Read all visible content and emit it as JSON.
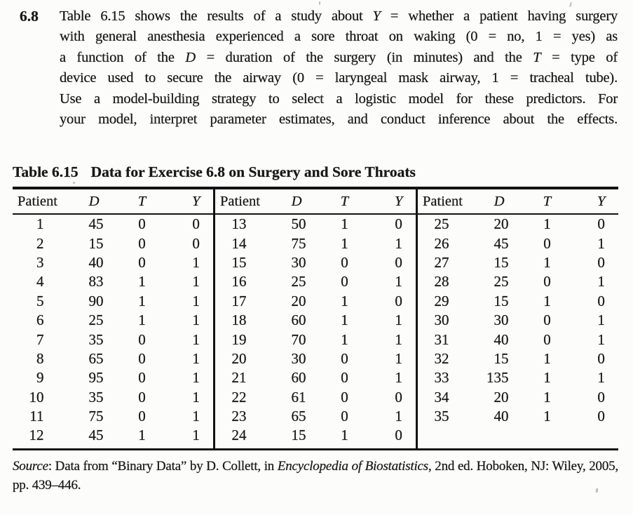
{
  "exercise": {
    "number": "6.8",
    "problem_lines": [
      [
        {
          "t": "Table 6.15 shows the results of a study about "
        },
        {
          "t": "Y",
          "i": true
        },
        {
          "t": " = whether a patient having surgery"
        }
      ],
      [
        {
          "t": "with general anesthesia experienced a sore throat on waking (0 = no, 1 = yes) as"
        }
      ],
      [
        {
          "t": "a function of the "
        },
        {
          "t": "D",
          "i": true
        },
        {
          "t": " = duration of the surgery (in minutes) and the "
        },
        {
          "t": "T",
          "i": true
        },
        {
          "t": " = type of"
        }
      ],
      [
        {
          "t": "device used to secure the airway (0 = laryngeal mask airway, 1 = tracheal tube)."
        }
      ],
      [
        {
          "t": "Use a model-building strategy to select a logistic model for these predictors. For"
        }
      ],
      [
        {
          "t": "your model, interpret parameter estimates, and conduct inference about the effects."
        }
      ]
    ]
  },
  "table": {
    "caption_label": "Table 6.15",
    "caption_title": "Data for Exercise 6.8 on Surgery and Sore Throats",
    "column_headers": [
      "Patient",
      "D",
      "T",
      "Y"
    ],
    "groups": [
      {
        "rows": [
          [
            "1",
            "45",
            "0",
            "0"
          ],
          [
            "2",
            "15",
            "0",
            "0"
          ],
          [
            "3",
            "40",
            "0",
            "1"
          ],
          [
            "4",
            "83",
            "1",
            "1"
          ],
          [
            "5",
            "90",
            "1",
            "1"
          ],
          [
            "6",
            "25",
            "1",
            "1"
          ],
          [
            "7",
            "35",
            "0",
            "1"
          ],
          [
            "8",
            "65",
            "0",
            "1"
          ],
          [
            "9",
            "95",
            "0",
            "1"
          ],
          [
            "10",
            "35",
            "0",
            "1"
          ],
          [
            "11",
            "75",
            "0",
            "1"
          ],
          [
            "12",
            "45",
            "1",
            "1"
          ]
        ]
      },
      {
        "rows": [
          [
            "13",
            "50",
            "1",
            "0"
          ],
          [
            "14",
            "75",
            "1",
            "1"
          ],
          [
            "15",
            "30",
            "0",
            "0"
          ],
          [
            "16",
            "25",
            "0",
            "1"
          ],
          [
            "17",
            "20",
            "1",
            "0"
          ],
          [
            "18",
            "60",
            "1",
            "1"
          ],
          [
            "19",
            "70",
            "1",
            "1"
          ],
          [
            "20",
            "30",
            "0",
            "1"
          ],
          [
            "21",
            "60",
            "0",
            "1"
          ],
          [
            "22",
            "61",
            "0",
            "0"
          ],
          [
            "23",
            "65",
            "0",
            "1"
          ],
          [
            "24",
            "15",
            "1",
            "0"
          ]
        ]
      },
      {
        "rows": [
          [
            "25",
            "20",
            "1",
            "0"
          ],
          [
            "26",
            "45",
            "0",
            "1"
          ],
          [
            "27",
            "15",
            "1",
            "0"
          ],
          [
            "28",
            "25",
            "0",
            "1"
          ],
          [
            "29",
            "15",
            "1",
            "0"
          ],
          [
            "30",
            "30",
            "0",
            "1"
          ],
          [
            "31",
            "40",
            "0",
            "1"
          ],
          [
            "32",
            "15",
            "1",
            "0"
          ],
          [
            "33",
            "135",
            "1",
            "1"
          ],
          [
            "34",
            "20",
            "1",
            "0"
          ],
          [
            "35",
            "40",
            "1",
            "0"
          ]
        ]
      }
    ]
  },
  "source_note_segments": [
    {
      "t": "Source",
      "i": true
    },
    {
      "t": ": Data from “Binary Data” by D. Collett, in "
    },
    {
      "t": "Encyclopedia of Biostatistics",
      "i": true
    },
    {
      "t": ", 2nd ed. Hoboken, NJ: Wiley, 2005, pp. 439–446."
    }
  ]
}
